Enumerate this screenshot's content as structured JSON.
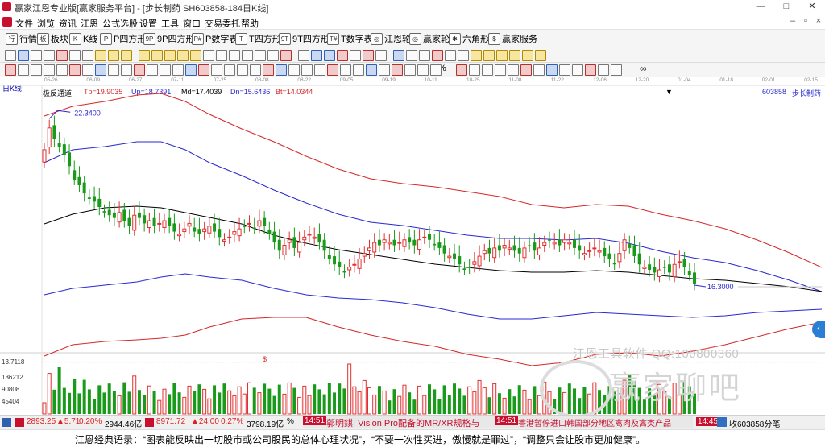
{
  "window": {
    "title": "赢家江恩专业版[赢家服务平台] - [步长制药  SH603858-184日K线]",
    "controls": [
      "—",
      "□",
      "✕"
    ]
  },
  "menu": {
    "items": [
      "文件",
      "浏览",
      "资讯",
      "江恩",
      "公式选股",
      "设置",
      "工具",
      "窗口",
      "交易委托",
      "帮助"
    ]
  },
  "toolbar1": {
    "items": [
      {
        "icon": "行",
        "label": "行情"
      },
      {
        "icon": "板",
        "label": "板块"
      },
      {
        "icon": "K",
        "label": "K线"
      },
      {
        "icon": "P",
        "label": "P四方形"
      },
      {
        "icon": "9P",
        "label": "9P四方形"
      },
      {
        "icon": "P#",
        "label": "P数字表"
      },
      {
        "icon": "T",
        "label": "T四方形"
      },
      {
        "icon": "9T",
        "label": "9T四方形"
      },
      {
        "icon": "T#",
        "label": "T数字表"
      },
      {
        "icon": "◎",
        "label": "江恩轮"
      },
      {
        "icon": "◎",
        "label": "赢家轮"
      },
      {
        "icon": "✱",
        "label": "六角形"
      },
      {
        "icon": "$",
        "label": "赢家服务"
      }
    ]
  },
  "toolbar3": {
    "symbols": [
      "%",
      "∞"
    ]
  },
  "chart": {
    "period_label": "日K线",
    "dates": [
      "05-26",
      "06-09",
      "06-27",
      "07-11",
      "07-25",
      "08-08",
      "08-22",
      "09-05",
      "09-19",
      "10-11",
      "10-25",
      "11-08",
      "11-22",
      "12-06",
      "12-20",
      "01-04",
      "01-18",
      "02-01",
      "02-15"
    ],
    "indicator_name": "极反通道",
    "tp": "Tp=19.9035",
    "up": "Up=18.7391",
    "md": "Md=17.4039",
    "dn": "Dn=15.6436",
    "bt": "Bt=14.0344",
    "stock_code": "603858",
    "stock_name": "步长制药",
    "high_label": "22.3400",
    "low_label": "16.3000",
    "dollar_mark": "$",
    "colors": {
      "up": "#e03030",
      "down": "#1a9a1a",
      "red_band": "#d42828",
      "blue_band": "#2828d0",
      "mid": "#000000"
    }
  },
  "chart_data": {
    "type": "candlestick",
    "title": "步长制药 603858 日K线",
    "ylim": [
      15.0,
      23.5
    ],
    "high": 22.34,
    "low": 16.3,
    "bands": {
      "Tp": 19.9035,
      "Up": 18.7391,
      "Md": 17.4039,
      "Dn": 15.6436,
      "Bt": 14.0344
    },
    "volume_ticks": [
      13.7118,
      136212,
      90808,
      45404
    ],
    "closes": [
      21.2,
      22.0,
      21.6,
      21.3,
      21.0,
      20.6,
      20.1,
      19.9,
      19.6,
      19.4,
      19.3,
      19.1,
      18.9,
      18.8,
      18.7,
      18.9,
      18.6,
      18.4,
      18.8,
      18.7,
      18.5,
      18.6,
      18.4,
      18.5,
      18.6,
      18.4,
      18.2,
      18.1,
      18.3,
      18.5,
      18.2,
      18.1,
      18.3,
      18.4,
      18.2,
      18.0,
      17.9,
      18.0,
      18.2,
      18.3,
      18.4,
      18.5,
      18.3,
      18.6,
      18.4,
      18.1,
      17.8,
      17.5,
      17.7,
      17.9,
      17.6,
      17.8,
      18.0,
      18.1,
      18.0,
      17.8,
      17.5,
      17.2,
      17.0,
      16.9,
      16.7,
      16.9,
      17.0,
      17.2,
      17.4,
      17.6,
      17.8,
      17.7,
      17.9,
      17.8,
      17.7,
      17.8,
      17.9,
      17.8,
      17.7,
      17.9,
      18.0,
      17.9,
      17.7,
      17.6,
      17.4,
      17.3,
      17.2,
      17.0,
      16.8,
      16.9,
      17.1,
      17.3,
      17.5,
      17.4,
      17.6,
      17.5,
      17.7,
      17.6,
      17.5,
      17.4,
      17.6,
      17.7,
      17.5,
      17.6,
      17.8,
      17.9,
      17.8,
      17.7,
      17.9,
      17.8,
      17.6,
      17.5,
      17.4,
      17.5,
      17.6,
      17.5,
      17.3,
      17.2,
      17.0,
      17.4,
      17.9,
      17.6,
      17.3,
      17.0,
      16.9,
      16.8,
      16.7,
      16.8,
      16.9,
      16.7,
      17.0,
      17.1,
      16.9,
      16.6,
      16.3
    ]
  },
  "watermark": {
    "line1": "江恩工具软件  QQ:100800360",
    "line2": "赢家聊吧"
  },
  "status": {
    "sh_index": "2893.25",
    "sh_change": "▲5.71",
    "sh_pct": "0.20%",
    "sh_amount": "2944.46亿",
    "sz_index": "8971.72",
    "sz_change": "▲24.00",
    "sz_pct": "0.27%",
    "sz_amount": "3798.19亿",
    "pct_tail": "%",
    "news1_time": "14:51",
    "news1_text": "郭明錤: Vision Pro配备的MR/XR规格与",
    "news2_time": "14:51",
    "news2_text": "香港暂停进口韩国部分地区禽肉及禽类产品",
    "news3_time": "14:45",
    "right_text": "收603858分笔"
  },
  "bottom_quote": "江恩经典语录：“图表能反映出一切股市或公司股民的总体心理状况”，“不要一次性买进，傲慢就是罪过”，“调整只会让股市更加健康”。"
}
